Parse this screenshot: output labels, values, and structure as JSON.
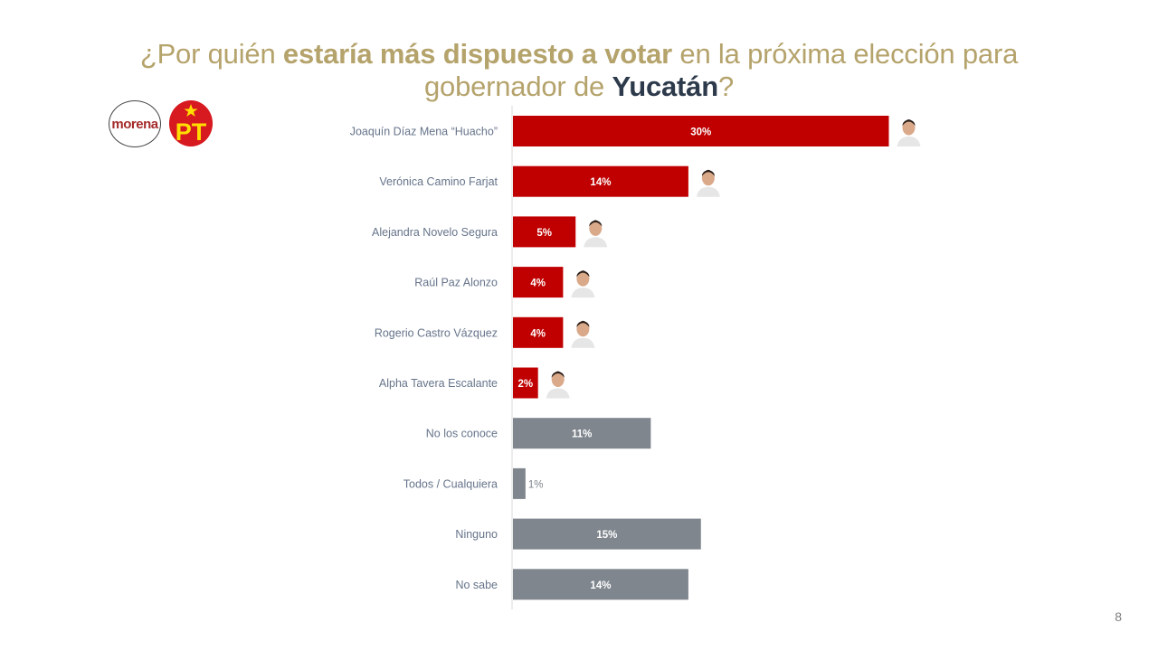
{
  "title": {
    "part1": "¿Por quién ",
    "part2": "estaría más dispuesto a votar",
    "part3": " en la próxima elección para",
    "part4": "gobernador de ",
    "part5": "Yucatán",
    "part6": "?"
  },
  "logos": {
    "morena": "morena",
    "pt": "PT"
  },
  "page_number": "8",
  "colors": {
    "candidate_bar": "#c00000",
    "other_bar": "#7f868d",
    "title_gold": "#b5a36c",
    "title_dark": "#2d3a4b"
  },
  "chart_data": {
    "type": "bar",
    "orientation": "horizontal",
    "categories": [
      "Joaquín Díaz Mena “Huacho”",
      "Verónica Camino Farjat",
      "Alejandra Novelo Segura",
      "Raúl Paz Alonzo",
      "Rogerio Castro Vázquez",
      "Alpha Tavera Escalante",
      "No los conoce",
      "Todos / Cualquiera",
      "Ninguno",
      "No sabe"
    ],
    "values": [
      30,
      14,
      5,
      4,
      4,
      2,
      11,
      1,
      15,
      14
    ],
    "value_labels": [
      "30%",
      "14%",
      "5%",
      "4%",
      "4%",
      "2%",
      "11%",
      "1%",
      "15%",
      "14%"
    ],
    "group": [
      "candidate",
      "candidate",
      "candidate",
      "candidate",
      "candidate",
      "candidate",
      "other",
      "other",
      "other",
      "other"
    ],
    "has_photo": [
      true,
      true,
      true,
      true,
      true,
      true,
      false,
      false,
      false,
      false
    ],
    "xlim": [
      0,
      30
    ]
  }
}
